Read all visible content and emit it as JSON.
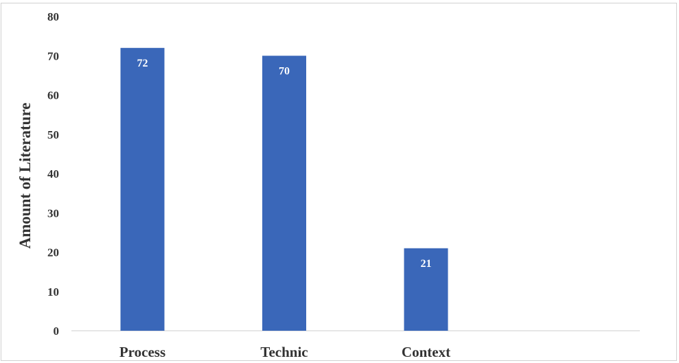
{
  "chart_data": {
    "type": "bar",
    "title": "",
    "xlabel": "",
    "ylabel": "Amount of Literature",
    "categories": [
      "Process",
      "Technic",
      "Context"
    ],
    "values": [
      72,
      70,
      21
    ],
    "data_labels": [
      "72",
      "70",
      "21"
    ],
    "ylim": [
      0,
      80
    ],
    "yticks": [
      0,
      10,
      20,
      30,
      40,
      50,
      60,
      70,
      80
    ],
    "grid": false,
    "legend": "none",
    "bar_color": "#3a67b9",
    "label_color": "#ffffff",
    "text_color": "#333333"
  }
}
